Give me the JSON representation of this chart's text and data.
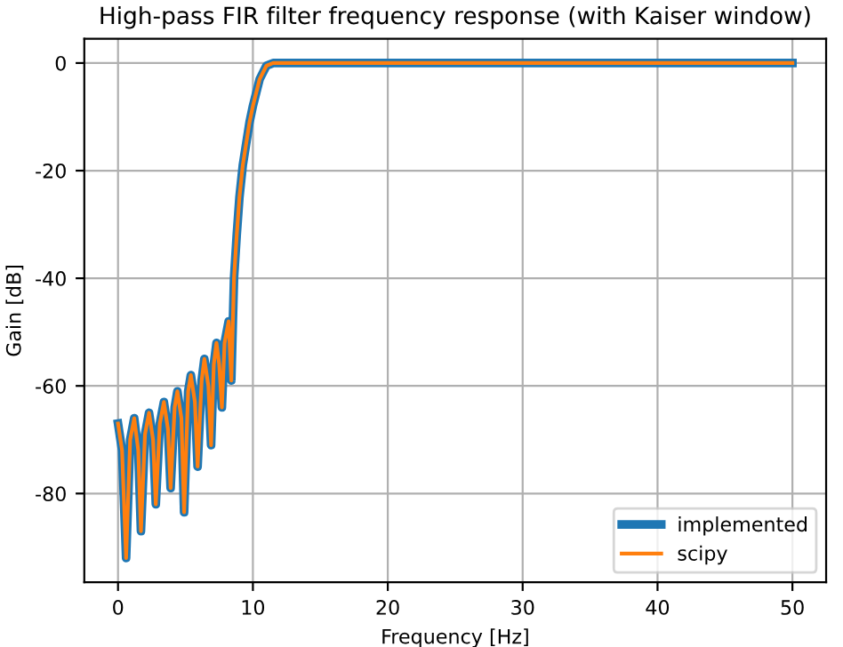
{
  "chart_data": {
    "type": "line",
    "title": "High-pass FIR filter frequency response (with Kaiser window)",
    "xlabel": "Frequency [Hz]",
    "ylabel": "Gain [dB]",
    "x": [
      0,
      0.3,
      0.6,
      0.9,
      1.2,
      1.5,
      1.7,
      2.0,
      2.3,
      2.6,
      2.8,
      3.1,
      3.4,
      3.7,
      3.9,
      4.2,
      4.4,
      4.7,
      4.9,
      5.2,
      5.4,
      5.7,
      5.9,
      6.2,
      6.4,
      6.7,
      6.9,
      7.1,
      7.3,
      7.5,
      7.7,
      7.9,
      8.2,
      8.4,
      8.6,
      8.8,
      9.0,
      9.25,
      9.5,
      9.75,
      10.0,
      10.5,
      11.0,
      11.5,
      12,
      20,
      30,
      40,
      50
    ],
    "series": [
      {
        "name": "implemented",
        "color": "#1f77b4",
        "values": [
          -67,
          -72,
          -92,
          -70,
          -66,
          -72,
          -87,
          -69,
          -65,
          -70,
          -82,
          -67,
          -63,
          -68,
          -79,
          -64,
          -61,
          -66,
          -83.5,
          -61,
          -58,
          -63,
          -75,
          -59,
          -55,
          -60,
          -71,
          -56,
          -52,
          -56,
          -64,
          -52,
          -48,
          -59,
          -40,
          -32,
          -25,
          -19,
          -15,
          -11,
          -8,
          -3,
          -0.5,
          0,
          0,
          0,
          0,
          0,
          0
        ]
      },
      {
        "name": "scipy",
        "color": "#ff7f0e",
        "values": [
          -67,
          -72,
          -92,
          -70,
          -66,
          -72,
          -87,
          -69,
          -65,
          -70,
          -82,
          -67,
          -63,
          -68,
          -79,
          -64,
          -61,
          -66,
          -83.5,
          -61,
          -58,
          -63,
          -75,
          -59,
          -55,
          -60,
          -71,
          -56,
          -52,
          -56,
          -64,
          -52,
          -48,
          -59,
          -40,
          -32,
          -25,
          -19,
          -15,
          -11,
          -8,
          -3,
          -0.5,
          0,
          0,
          0,
          0,
          0,
          0
        ]
      }
    ],
    "xlim": [
      -2.5,
      52.5
    ],
    "ylim": [
      -96.5,
      4.5
    ],
    "xticks": [
      0,
      10,
      20,
      30,
      40,
      50
    ],
    "yticks": [
      -80,
      -60,
      -40,
      -20,
      0
    ],
    "grid": true,
    "legend": "bottom right",
    "line_style": "solid",
    "marker": "none"
  }
}
